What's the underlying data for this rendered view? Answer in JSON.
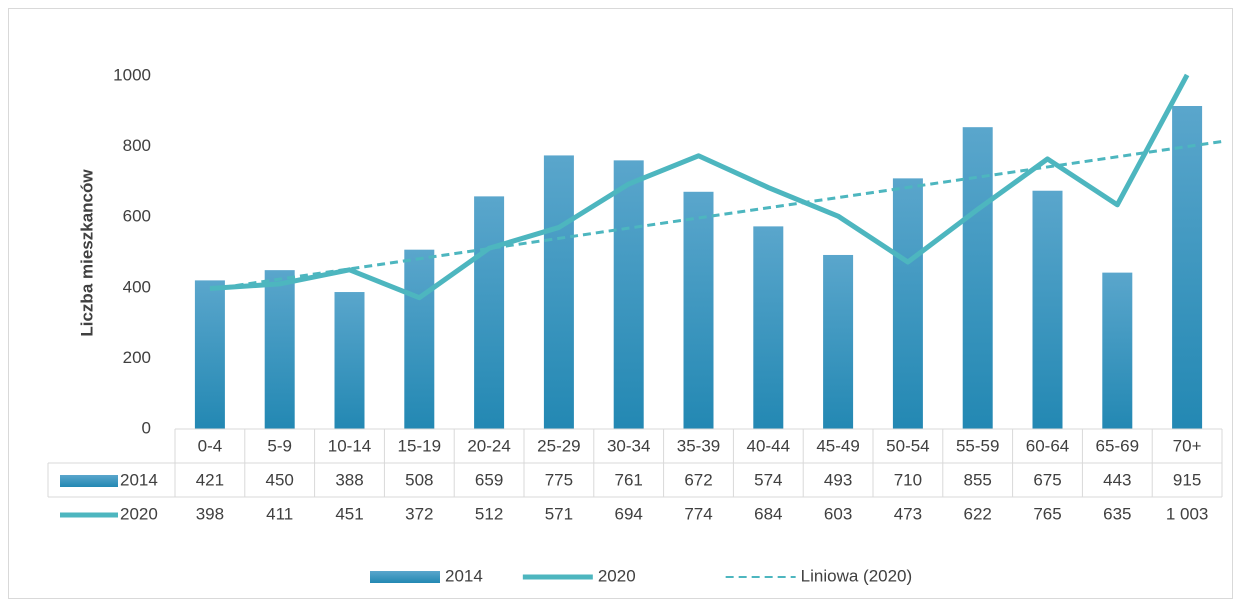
{
  "chart_data": {
    "type": "bar",
    "ylabel": "Liczba mieszkanców",
    "categories": [
      "0-4",
      "5-9",
      "10-14",
      "15-19",
      "20-24",
      "25-29",
      "30-34",
      "35-39",
      "40-44",
      "45-49",
      "50-54",
      "55-59",
      "60-64",
      "65-69",
      "70+"
    ],
    "ylim": [
      0,
      1000
    ],
    "yticks": [
      0,
      200,
      400,
      600,
      800,
      1000
    ],
    "grid": false,
    "legend": "bottom",
    "data_table": true,
    "series": [
      {
        "name": "2014",
        "type": "bar",
        "color": "#2e8fba",
        "values": [
          421,
          450,
          388,
          508,
          659,
          775,
          761,
          672,
          574,
          493,
          710,
          855,
          675,
          443,
          915
        ]
      },
      {
        "name": "2020",
        "type": "line",
        "color": "#4db6bf",
        "values": [
          398,
          411,
          451,
          372,
          512,
          571,
          694,
          774,
          684,
          603,
          473,
          622,
          765,
          635,
          1003
        ],
        "value_labels": [
          "398",
          "411",
          "451",
          "372",
          "512",
          "571",
          "694",
          "774",
          "684",
          "603",
          "473",
          "622",
          "765",
          "635",
          "1 003"
        ],
        "trendline": {
          "name": "Liniowa (2020)",
          "color": "#4db6bf",
          "dashed": true
        }
      }
    ]
  }
}
